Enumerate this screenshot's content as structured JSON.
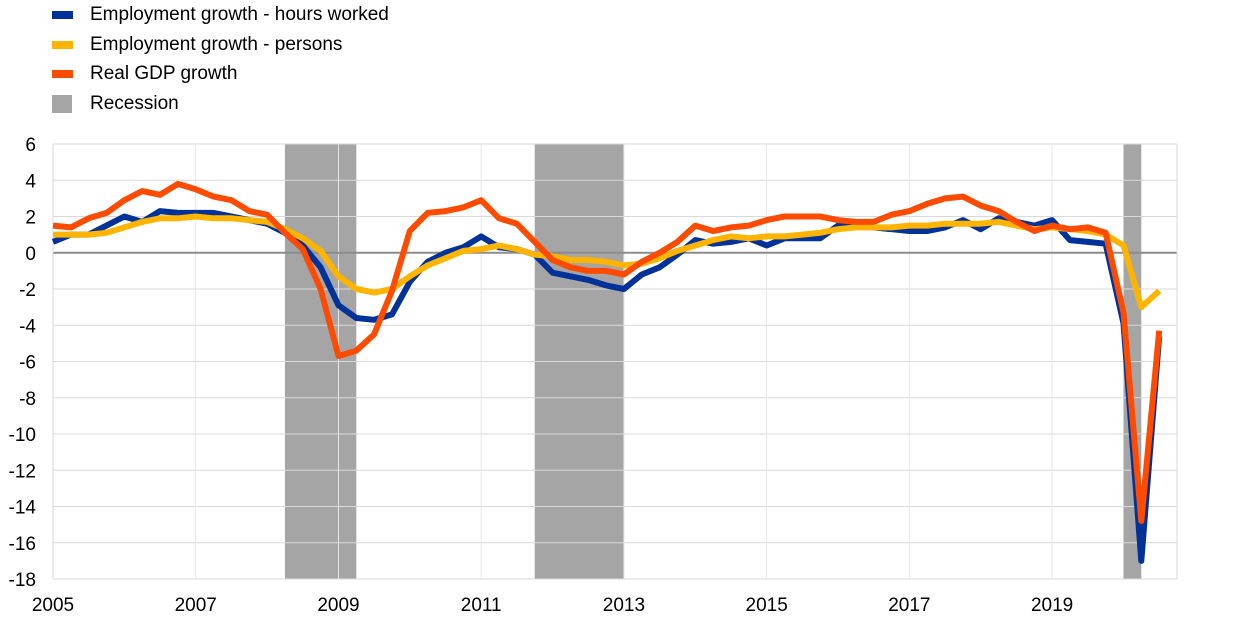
{
  "chart_data": {
    "type": "line",
    "title": "",
    "xlabel": "",
    "ylabel": "",
    "xlim": [
      2005.0,
      2020.75
    ],
    "ylim": [
      -18,
      6
    ],
    "y_ticks": [
      "6",
      "4",
      "2",
      "0",
      "-2",
      "-4",
      "-6",
      "-8",
      "-10",
      "-12",
      "-14",
      "-16",
      "-18"
    ],
    "x_ticks": [
      "2005",
      "2007",
      "2009",
      "2011",
      "2013",
      "2015",
      "2017",
      "2019"
    ],
    "grid": "horizontal",
    "legend_position": "top-left",
    "recession_label": "Recession",
    "recession_color": "#a5a5a5",
    "recessions": [
      [
        2008.25,
        2009.25
      ],
      [
        2011.75,
        2013.0
      ],
      [
        2020.0,
        2020.25
      ]
    ],
    "x": [
      2005.0,
      2005.25,
      2005.5,
      2005.75,
      2006.0,
      2006.25,
      2006.5,
      2006.75,
      2007.0,
      2007.25,
      2007.5,
      2007.75,
      2008.0,
      2008.25,
      2008.5,
      2008.75,
      2009.0,
      2009.25,
      2009.5,
      2009.75,
      2010.0,
      2010.25,
      2010.5,
      2010.75,
      2011.0,
      2011.25,
      2011.5,
      2011.75,
      2012.0,
      2012.25,
      2012.5,
      2012.75,
      2013.0,
      2013.25,
      2013.5,
      2013.75,
      2014.0,
      2014.25,
      2014.5,
      2014.75,
      2015.0,
      2015.25,
      2015.5,
      2015.75,
      2016.0,
      2016.25,
      2016.5,
      2016.75,
      2017.0,
      2017.25,
      2017.5,
      2017.75,
      2018.0,
      2018.25,
      2018.5,
      2018.75,
      2019.0,
      2019.25,
      2019.5,
      2019.75,
      2020.0,
      2020.25,
      2020.5
    ],
    "series": [
      {
        "name": "Employment growth - hours worked",
        "color": "#003299",
        "values": [
          0.6,
          1.0,
          1.0,
          1.5,
          2.0,
          1.7,
          2.3,
          2.2,
          2.2,
          2.2,
          2.0,
          1.8,
          1.6,
          1.1,
          0.4,
          -0.8,
          -2.9,
          -3.6,
          -3.7,
          -3.4,
          -1.6,
          -0.5,
          0.0,
          0.3,
          0.9,
          0.3,
          0.2,
          -0.1,
          -1.1,
          -1.3,
          -1.5,
          -1.8,
          -2.0,
          -1.2,
          -0.8,
          -0.1,
          0.7,
          0.5,
          0.6,
          0.8,
          0.4,
          0.8,
          0.8,
          0.8,
          1.5,
          1.5,
          1.4,
          1.3,
          1.2,
          1.2,
          1.4,
          1.8,
          1.3,
          1.9,
          1.7,
          1.5,
          1.8,
          0.7,
          0.6,
          0.5,
          -3.9,
          -17.0,
          -4.6
        ]
      },
      {
        "name": "Employment growth - persons",
        "color": "#ffb400",
        "values": [
          1.0,
          1.0,
          1.0,
          1.1,
          1.4,
          1.7,
          1.9,
          1.9,
          2.0,
          1.9,
          1.9,
          1.8,
          1.7,
          1.3,
          0.8,
          0.1,
          -1.3,
          -2.0,
          -2.2,
          -2.0,
          -1.3,
          -0.7,
          -0.3,
          0.1,
          0.2,
          0.4,
          0.2,
          -0.1,
          -0.2,
          -0.4,
          -0.4,
          -0.5,
          -0.7,
          -0.6,
          -0.3,
          0.1,
          0.4,
          0.7,
          0.9,
          0.8,
          0.9,
          0.9,
          1.0,
          1.1,
          1.3,
          1.4,
          1.4,
          1.4,
          1.5,
          1.5,
          1.6,
          1.6,
          1.6,
          1.7,
          1.5,
          1.3,
          1.4,
          1.3,
          1.2,
          1.0,
          0.4,
          -3.0,
          -2.1
        ]
      },
      {
        "name": "Real GDP growth",
        "color": "#ff4b00",
        "values": [
          1.5,
          1.4,
          1.9,
          2.2,
          2.9,
          3.4,
          3.2,
          3.8,
          3.5,
          3.1,
          2.9,
          2.3,
          2.1,
          1.1,
          0.2,
          -2.0,
          -5.7,
          -5.4,
          -4.5,
          -2.1,
          1.2,
          2.2,
          2.3,
          2.5,
          2.9,
          1.9,
          1.6,
          0.6,
          -0.4,
          -0.8,
          -1.0,
          -1.0,
          -1.2,
          -0.5,
          0.0,
          0.6,
          1.5,
          1.2,
          1.4,
          1.5,
          1.8,
          2.0,
          2.0,
          2.0,
          1.8,
          1.7,
          1.7,
          2.1,
          2.3,
          2.7,
          3.0,
          3.1,
          2.6,
          2.3,
          1.7,
          1.2,
          1.5,
          1.3,
          1.4,
          1.1,
          -3.3,
          -14.8,
          -4.3
        ]
      }
    ]
  }
}
